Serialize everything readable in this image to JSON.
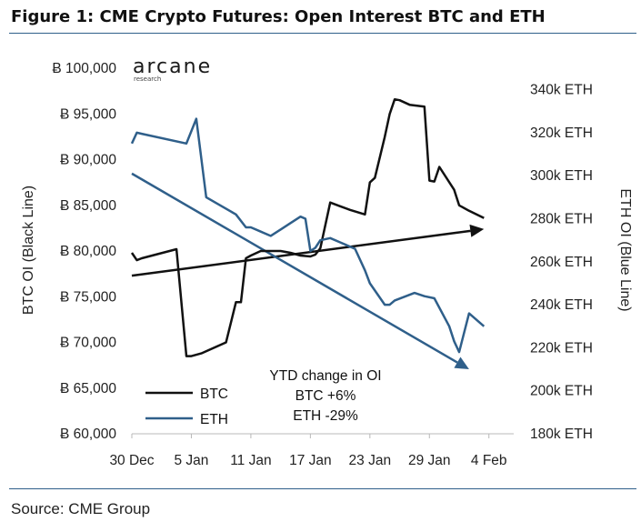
{
  "figure": {
    "title": "Figure 1: CME Crypto Futures: Open Interest BTC and ETH",
    "source": "Source: CME Group",
    "logo": {
      "name": "arcane",
      "tagline": "research"
    }
  },
  "colors": {
    "btc": "#111111",
    "eth": "#2f5f8a",
    "rule": "#2f5f8a"
  },
  "chart_data": {
    "type": "line",
    "xlabel": "",
    "ylabel": "BTC OI (Black Line)",
    "y2label": "ETH OI (Blue Line)",
    "x_ticks": [
      "30 Dec",
      "5 Jan",
      "11 Jan",
      "17 Jan",
      "23 Jan",
      "29 Jan",
      "4 Feb"
    ],
    "x_start": "2019-12-30",
    "xlim_days": [
      0,
      38.5
    ],
    "ylim": [
      60000,
      100000
    ],
    "y_ticks": [
      {
        "value": 60000,
        "label": "Ƀ 60,000"
      },
      {
        "value": 65000,
        "label": "Ƀ 65,000"
      },
      {
        "value": 70000,
        "label": "Ƀ 70,000"
      },
      {
        "value": 75000,
        "label": "Ƀ 75,000"
      },
      {
        "value": 80000,
        "label": "Ƀ 80,000"
      },
      {
        "value": 85000,
        "label": "Ƀ 85,000"
      },
      {
        "value": 90000,
        "label": "Ƀ 90,000"
      },
      {
        "value": 95000,
        "label": "Ƀ 95,000"
      },
      {
        "value": 100000,
        "label": "Ƀ 100,000"
      }
    ],
    "y2lim": [
      180000,
      350000
    ],
    "y2_ticks": [
      {
        "value": 180000,
        "label": "180k ETH"
      },
      {
        "value": 200000,
        "label": "200k ETH"
      },
      {
        "value": 220000,
        "label": "220k ETH"
      },
      {
        "value": 240000,
        "label": "240k ETH"
      },
      {
        "value": 260000,
        "label": "260k ETH"
      },
      {
        "value": 280000,
        "label": "280k ETH"
      },
      {
        "value": 300000,
        "label": "300k ETH"
      },
      {
        "value": 320000,
        "label": "320k ETH"
      },
      {
        "value": 340000,
        "label": "340k ETH"
      }
    ],
    "series": [
      {
        "name": "BTC",
        "axis": "left",
        "x": [
          0,
          0.5,
          1,
          4.5,
          5.5,
          6,
          7,
          9.5,
          10.5,
          11,
          11.5,
          12,
          13,
          14,
          15,
          16,
          17,
          18,
          18.5,
          19,
          20,
          21,
          22,
          23.5,
          24,
          24.5,
          25.5,
          26,
          26.5,
          27,
          28,
          29.5,
          30,
          30.5,
          31,
          32.5,
          33,
          34,
          35.5
        ],
        "y": [
          79800,
          79000,
          79200,
          80200,
          68500,
          68500,
          68800,
          70000,
          74400,
          74400,
          79200,
          79500,
          80000,
          80000,
          80000,
          79800,
          79500,
          79400,
          79600,
          80300,
          85300,
          84900,
          84500,
          84000,
          87500,
          88000,
          92500,
          95000,
          96600,
          96500,
          96000,
          95800,
          87700,
          87600,
          89200,
          86700,
          85000,
          84400,
          83600
        ]
      },
      {
        "name": "ETH",
        "axis": "right",
        "x": [
          0,
          0.5,
          1,
          5.5,
          6.5,
          7.5,
          10.5,
          11.5,
          12,
          13,
          14,
          15,
          16,
          17,
          17.5,
          18,
          18.5,
          19,
          20,
          21,
          22.5,
          23.5,
          24,
          25.5,
          26,
          26.5,
          28.5,
          29.5,
          30.5,
          32,
          32.5,
          33,
          34,
          35.5
        ],
        "y": [
          315000,
          320000,
          319500,
          315000,
          326500,
          290000,
          282000,
          276000,
          276000,
          274000,
          272000,
          275000,
          278000,
          281000,
          280000,
          265000,
          266500,
          270000,
          271000,
          269000,
          266000,
          256000,
          250000,
          240000,
          240000,
          242000,
          245500,
          244000,
          243000,
          230000,
          223000,
          218000,
          236000,
          230000
        ]
      }
    ],
    "trendlines": [
      {
        "name": "BTC trend",
        "axis": "left",
        "x": [
          0,
          35.5
        ],
        "y": [
          77300,
          82400
        ]
      },
      {
        "name": "ETH trend",
        "axis": "right",
        "x": [
          0,
          34
        ],
        "y": [
          301000,
          210000
        ]
      }
    ],
    "legend": {
      "placement": "bottom-left",
      "entries": [
        "BTC",
        "ETH"
      ]
    },
    "annotation": [
      "YTD change in OI",
      "BTC +6%",
      "ETH -29%"
    ],
    "grid": false
  }
}
